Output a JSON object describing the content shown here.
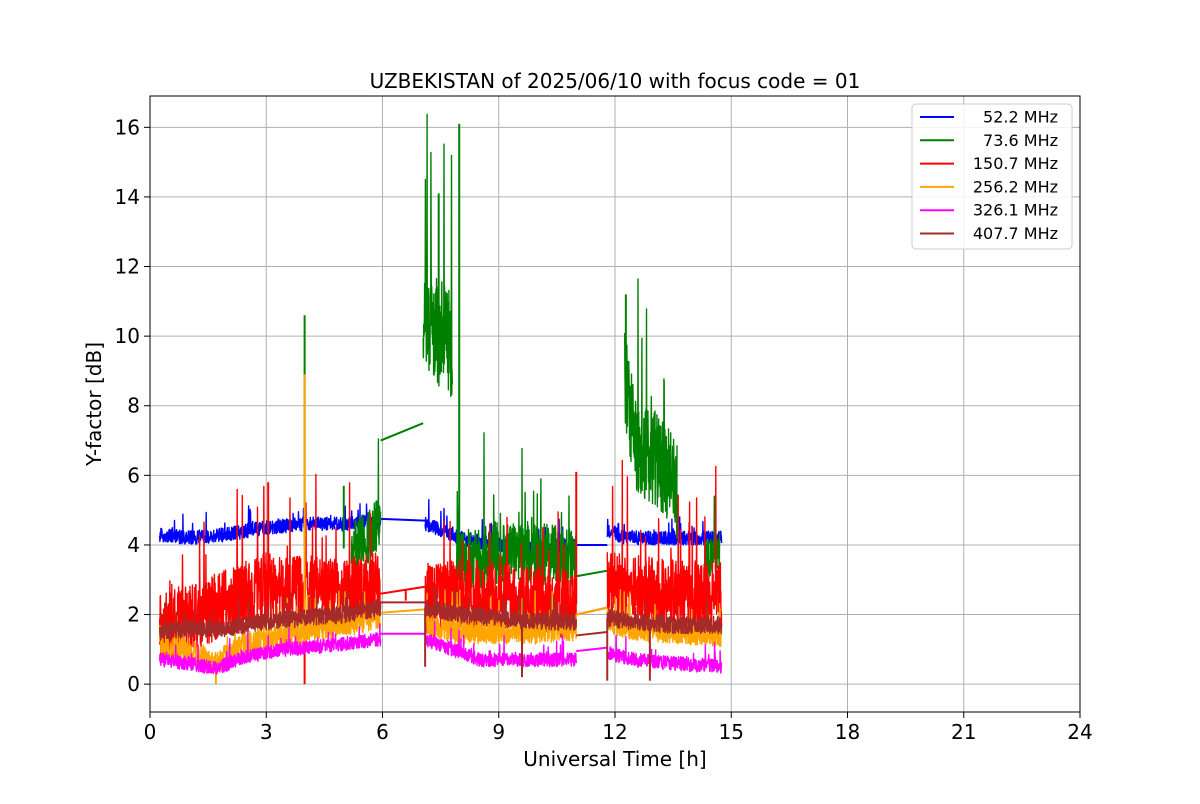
{
  "chart_data": {
    "type": "line",
    "title": "UZBEKISTAN of 2025/06/10 with focus code = 01",
    "xlabel": "Universal Time [h]",
    "ylabel": "Y-factor [dB]",
    "xlim": [
      0,
      24
    ],
    "ylim": [
      -0.8,
      16.9
    ],
    "x_ticks": [
      0,
      3,
      6,
      9,
      12,
      15,
      18,
      21,
      24
    ],
    "y_ticks": [
      0,
      2,
      4,
      6,
      8,
      10,
      12,
      14,
      16
    ],
    "x_tick_labels": [
      "0",
      "3",
      "6",
      "9",
      "12",
      "15",
      "18",
      "21",
      "24"
    ],
    "y_tick_labels": [
      "0",
      "2",
      "4",
      "6",
      "8",
      "10",
      "12",
      "14",
      "16"
    ],
    "grid": true,
    "legend_position": "top-right",
    "series": [
      {
        "name": " 52.2 MHz",
        "color": "#0000ff",
        "segments": [
          {
            "x": [
              0.25,
              1.0,
              2.0,
              3.0,
              4.0,
              5.0,
              5.5,
              5.95
            ],
            "base": [
              4.3,
              4.2,
              4.3,
              4.5,
              4.6,
              4.6,
              4.7,
              4.6
            ],
            "noise": 0.2
          },
          {
            "x": [
              7.1,
              7.6,
              8.0,
              8.5,
              9.0,
              10.0,
              11.0
            ],
            "base": [
              4.6,
              4.4,
              4.2,
              4.1,
              4.0,
              3.9,
              4.0
            ],
            "noise": 0.2
          },
          {
            "x": [
              11.8,
              12.3,
              13.0,
              14.0,
              14.75
            ],
            "base": [
              4.4,
              4.2,
              4.2,
              4.2,
              4.2
            ],
            "noise": 0.2
          }
        ],
        "bridges": [
          [
            5.95,
            4.75,
            7.1,
            4.7
          ],
          [
            11.0,
            4.0,
            11.8,
            4.0
          ]
        ],
        "spikes": []
      },
      {
        "name": " 73.6 MHz",
        "color": "#008000",
        "segments": [
          {
            "x": [
              0.25,
              0.5,
              0.8
            ],
            "base": [
              1.8,
              1.8,
              1.7
            ],
            "noise": 0.3
          },
          {
            "x": [
              5.2,
              5.6,
              5.95
            ],
            "base": [
              3.9,
              4.2,
              4.8
            ],
            "noise": 0.8
          },
          {
            "x": [
              7.05,
              7.2,
              7.5,
              7.8
            ],
            "base": [
              10.8,
              10.5,
              10.0,
              9.6
            ],
            "noise": 1.6
          },
          {
            "x": [
              7.9,
              8.5,
              9.0,
              10.0,
              11.0
            ],
            "base": [
              3.5,
              3.6,
              3.8,
              3.8,
              3.5
            ],
            "noise": 0.9
          },
          {
            "x": [
              12.25,
              12.5,
              13.0,
              13.3,
              13.6
            ],
            "base": [
              9.0,
              7.0,
              6.5,
              6.2,
              5.5
            ],
            "noise": 1.4
          },
          {
            "x": [
              14.3,
              14.7
            ],
            "base": [
              3.6,
              3.8
            ],
            "noise": 0.6
          }
        ],
        "bridges": [
          [
            5.95,
            7.0,
            7.05,
            7.5
          ],
          [
            11.0,
            3.1,
            12.0,
            3.3
          ]
        ],
        "spikes": [
          [
            3.99,
            10.6
          ],
          [
            7.98,
            16.1
          ],
          [
            12.28,
            11.2
          ],
          [
            7.45,
            14.1
          ],
          [
            5.0,
            5.7
          ]
        ]
      },
      {
        "name": "150.7 MHz",
        "color": "#ff0000",
        "segments": [
          {
            "x": [
              0.25,
              1.0,
              2.0,
              3.0,
              4.0,
              5.0,
              5.95
            ],
            "base": [
              1.6,
              1.9,
              2.3,
              2.8,
              2.7,
              2.6,
              2.8
            ],
            "noise": 1.0
          },
          {
            "x": [
              7.1,
              8.0,
              9.0,
              10.0,
              11.0
            ],
            "base": [
              2.4,
              2.6,
              2.5,
              2.4,
              2.3
            ],
            "noise": 1.0
          },
          {
            "x": [
              11.8,
              12.5,
              13.5,
              14.75
            ],
            "base": [
              2.8,
              2.7,
              2.6,
              2.5
            ],
            "noise": 1.0
          }
        ],
        "bridges": [
          [
            5.95,
            2.6,
            7.1,
            2.8
          ],
          [
            11.0,
            2.0,
            11.8,
            2.2
          ]
        ],
        "spikes": [
          [
            3.05,
            5.8
          ],
          [
            11.0,
            6.1
          ],
          [
            3.99,
            0.0
          ],
          [
            6.6,
            2.7
          ]
        ]
      },
      {
        "name": "256.2 MHz",
        "color": "#ffa500",
        "segments": [
          {
            "x": [
              0.25,
              1.0,
              1.7,
              2.5,
              3.5,
              4.5,
              5.95
            ],
            "base": [
              1.1,
              1.0,
              0.6,
              1.2,
              1.4,
              1.6,
              1.9
            ],
            "noise": 0.35
          },
          {
            "x": [
              7.1,
              8.0,
              9.0,
              10.0,
              11.0
            ],
            "base": [
              1.7,
              1.5,
              1.5,
              1.5,
              1.6
            ],
            "noise": 0.35
          },
          {
            "x": [
              11.8,
              12.5,
              13.5,
              14.75
            ],
            "base": [
              1.8,
              1.6,
              1.5,
              1.4
            ],
            "noise": 0.35
          }
        ],
        "bridges": [
          [
            5.95,
            2.05,
            7.1,
            2.15
          ],
          [
            11.0,
            2.0,
            11.8,
            2.2
          ]
        ],
        "spikes": [
          [
            3.99,
            8.9
          ],
          [
            1.7,
            0.0
          ]
        ]
      },
      {
        "name": "326.1 MHz",
        "color": "#ff00ff",
        "segments": [
          {
            "x": [
              0.25,
              1.0,
              1.7,
              2.5,
              3.5,
              4.5,
              5.95
            ],
            "base": [
              0.7,
              0.6,
              0.45,
              0.8,
              1.0,
              1.1,
              1.3
            ],
            "noise": 0.2
          },
          {
            "x": [
              7.1,
              7.8,
              8.5,
              9.5,
              10.5,
              11.0
            ],
            "base": [
              1.3,
              1.0,
              0.7,
              0.7,
              0.7,
              0.7
            ],
            "noise": 0.2
          },
          {
            "x": [
              11.8,
              12.5,
              13.5,
              14.75
            ],
            "base": [
              0.9,
              0.7,
              0.6,
              0.5
            ],
            "noise": 0.2
          }
        ],
        "bridges": [
          [
            5.95,
            1.45,
            7.1,
            1.45
          ],
          [
            11.0,
            0.95,
            11.8,
            1.05
          ]
        ],
        "spikes": []
      },
      {
        "name": "407.7 MHz",
        "color": "#a52a2a",
        "segments": [
          {
            "x": [
              0.25,
              1.0,
              2.0,
              3.0,
              4.0,
              5.0,
              5.95
            ],
            "base": [
              1.5,
              1.6,
              1.6,
              1.8,
              1.9,
              2.0,
              2.2
            ],
            "noise": 0.25
          },
          {
            "x": [
              7.1,
              8.0,
              9.0,
              10.0,
              11.0
            ],
            "base": [
              2.2,
              2.0,
              1.9,
              1.8,
              1.8
            ],
            "noise": 0.25
          },
          {
            "x": [
              11.8,
              12.5,
              13.5,
              14.75
            ],
            "base": [
              1.9,
              1.8,
              1.7,
              1.7
            ],
            "noise": 0.25
          }
        ],
        "bridges": [
          [
            5.95,
            2.35,
            7.1,
            2.35
          ],
          [
            11.0,
            1.4,
            11.8,
            1.5
          ]
        ],
        "spikes": [
          [
            7.1,
            0.5
          ],
          [
            9.6,
            0.2
          ],
          [
            11.8,
            0.1
          ],
          [
            12.9,
            0.1
          ]
        ]
      }
    ]
  }
}
